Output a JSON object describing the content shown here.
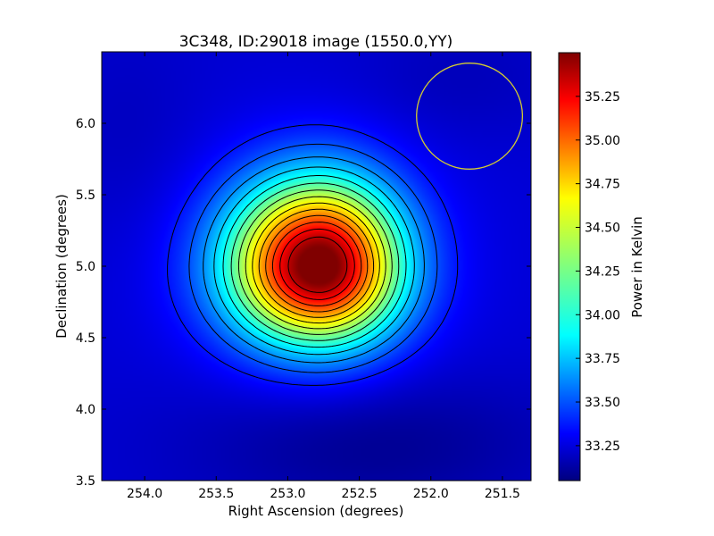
{
  "chart_data": {
    "type": "heatmap",
    "title": "3C348, ID:29018 image (1550.0,YY)",
    "xlabel": "Right Ascension (degrees)",
    "ylabel": "Declination (degrees)",
    "colorbar_label": "Power in Kelvin",
    "colormap": "jet",
    "xlim": [
      254.3,
      251.3
    ],
    "ylim": [
      3.5,
      6.5
    ],
    "x_ticks": [
      254.0,
      253.5,
      253.0,
      252.5,
      252.0,
      251.5
    ],
    "x_tick_labels": [
      "254.0",
      "253.5",
      "253.0",
      "252.5",
      "252.0",
      "251.5"
    ],
    "y_ticks": [
      3.5,
      4.0,
      4.5,
      5.0,
      5.5,
      6.0
    ],
    "y_tick_labels": [
      "3.5",
      "4.0",
      "4.5",
      "5.0",
      "5.5",
      "6.0"
    ],
    "colorbar_range": [
      33.05,
      35.5
    ],
    "colorbar_ticks": [
      33.25,
      33.5,
      33.75,
      34.0,
      34.25,
      34.5,
      34.75,
      35.0,
      35.25
    ],
    "colorbar_tick_labels": [
      "33.25",
      "33.50",
      "33.75",
      "34.00",
      "34.25",
      "34.50",
      "34.75",
      "35.00",
      "35.25"
    ],
    "source": {
      "ra_center": 252.78,
      "dec_center": 5.0,
      "peak_power": 35.5,
      "background_power": 33.25
    },
    "contour_levels": [
      33.4,
      33.55,
      33.7,
      33.85,
      34.0,
      34.15,
      34.3,
      34.45,
      34.6,
      34.75,
      34.9,
      35.05,
      35.2,
      35.35
    ],
    "beam_circle": {
      "ra_center": 251.73,
      "dec_center": 6.05,
      "radius_deg": 0.37,
      "color": "#d4cc30"
    },
    "contour_color": "#000000"
  }
}
